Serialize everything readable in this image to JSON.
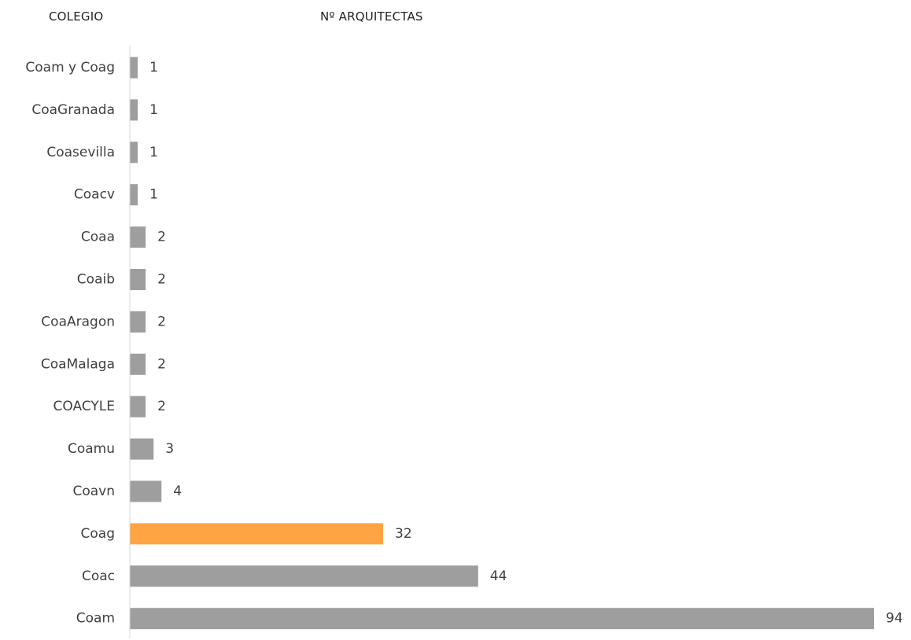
{
  "headers": {
    "category": "COLEGIO",
    "value": "Nº ARQUITECTAS"
  },
  "colors": {
    "bar": "#9e9e9e",
    "highlight": "#ffa443",
    "axis": "#d9d9d9",
    "label": "#404040"
  },
  "chart_data": {
    "type": "bar",
    "orientation": "horizontal",
    "title": "",
    "xlabel": "Nº ARQUITECTAS",
    "ylabel": "COLEGIO",
    "categories": [
      "Coam y Coag",
      "CoaGranada",
      "Coasevilla",
      "Coacv",
      "Coaa",
      "Coaib",
      "CoaAragon",
      "CoaMalaga",
      "COACYLE",
      "Coamu",
      "Coavn",
      "Coag",
      "Coac",
      "Coam"
    ],
    "values": [
      1,
      1,
      1,
      1,
      2,
      2,
      2,
      2,
      2,
      3,
      4,
      32,
      44,
      94
    ],
    "highlighted_category": "Coag",
    "xlim": [
      0,
      94
    ],
    "grid": false,
    "legend": "none",
    "data_labels": true
  }
}
